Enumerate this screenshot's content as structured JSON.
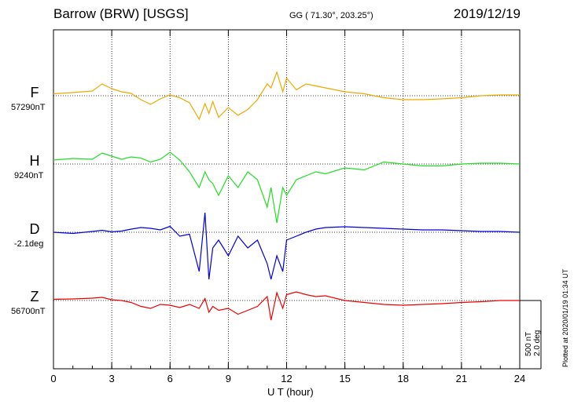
{
  "header": {
    "station": "Barrow (BRW)  [USGS]",
    "coords": "GG ( 71.30°, 203.25°)",
    "date": "2019/12/19"
  },
  "chart_data": {
    "type": "line",
    "xlabel": "U T (hour)",
    "xlim": [
      0,
      24
    ],
    "xticks": [
      "0",
      "3",
      "6",
      "9",
      "12",
      "15",
      "18",
      "21",
      "24"
    ],
    "grid": true,
    "scale_label_1": "500 nT",
    "scale_label_2": "2.0 deg",
    "plotted_note": "Plotted at 2020/01/19 01:34 UT",
    "series": [
      {
        "name": "F",
        "baseline_label": "57290nT",
        "color": "#f0a800",
        "x": [
          0,
          1,
          2,
          2.5,
          3,
          3.5,
          4,
          4.5,
          5,
          5.5,
          6,
          6.5,
          7,
          7.5,
          7.8,
          8,
          8.2,
          8.5,
          9,
          9.5,
          10,
          10.5,
          11,
          11.2,
          11.5,
          11.8,
          12,
          12.5,
          13,
          13.5,
          14,
          15,
          16,
          17,
          18,
          19,
          20,
          21,
          22,
          23,
          24
        ],
        "y": [
          5,
          8,
          12,
          30,
          18,
          10,
          6,
          -10,
          -22,
          -8,
          2,
          -5,
          -18,
          -60,
          -20,
          -45,
          -15,
          -55,
          -30,
          -50,
          -35,
          -10,
          30,
          20,
          60,
          10,
          45,
          15,
          30,
          25,
          20,
          10,
          5,
          -5,
          -10,
          -10,
          -8,
          -5,
          0,
          2,
          2
        ]
      },
      {
        "name": "H",
        "baseline_label": "9240nT",
        "color": "#22dd22",
        "x": [
          0,
          1,
          2,
          2.5,
          3,
          3.5,
          4,
          4.5,
          5,
          5.5,
          6,
          6.5,
          7,
          7.5,
          7.8,
          8,
          8.2,
          8.5,
          9,
          9.5,
          10,
          10.5,
          11,
          11.2,
          11.5,
          11.8,
          12,
          12.5,
          13,
          13.5,
          14,
          15,
          16,
          17,
          18,
          19,
          20,
          21,
          22,
          23,
          24
        ],
        "y": [
          10,
          14,
          12,
          28,
          20,
          12,
          18,
          15,
          5,
          12,
          30,
          10,
          -20,
          -60,
          -20,
          -40,
          -50,
          -80,
          -30,
          -60,
          -20,
          -40,
          -110,
          -60,
          -150,
          -60,
          -80,
          -40,
          -30,
          -20,
          -25,
          -10,
          -15,
          5,
          0,
          -5,
          -5,
          0,
          2,
          2,
          0
        ]
      },
      {
        "name": "D",
        "baseline_label": "-2.1deg",
        "color": "#0000dd",
        "x": [
          0,
          1,
          2,
          2.5,
          3,
          3.5,
          4,
          4.5,
          5,
          5.5,
          6,
          6.5,
          7,
          7.5,
          7.8,
          8,
          8.2,
          8.5,
          9,
          9.5,
          10,
          10.5,
          11,
          11.2,
          11.5,
          11.8,
          12,
          12.5,
          13,
          13.5,
          14,
          15,
          16,
          17,
          18,
          19,
          20,
          21,
          22,
          23,
          24
        ],
        "y": [
          0,
          -3,
          2,
          5,
          1,
          3,
          8,
          12,
          10,
          6,
          15,
          -10,
          -5,
          -100,
          50,
          -120,
          -40,
          -20,
          -60,
          -10,
          -40,
          -20,
          -80,
          -120,
          -60,
          -100,
          -20,
          -10,
          0,
          8,
          12,
          14,
          12,
          10,
          8,
          6,
          6,
          4,
          2,
          2,
          0
        ]
      },
      {
        "name": "Z",
        "baseline_label": "56700nT",
        "color": "#ee0000",
        "x": [
          0,
          1,
          2,
          2.5,
          3,
          3.5,
          4,
          4.5,
          5,
          5.5,
          6,
          6.5,
          7,
          7.5,
          7.8,
          8,
          8.2,
          8.5,
          9,
          9.5,
          10,
          10.5,
          11,
          11.2,
          11.5,
          11.8,
          12,
          12.5,
          13,
          13.5,
          14,
          15,
          16,
          17,
          18,
          19,
          20,
          21,
          22,
          23,
          24
        ],
        "y": [
          3,
          4,
          6,
          8,
          2,
          0,
          -5,
          -15,
          -20,
          -10,
          -12,
          -18,
          -10,
          -20,
          5,
          -30,
          -15,
          -25,
          -20,
          -35,
          -25,
          -15,
          10,
          -50,
          20,
          -20,
          15,
          22,
          15,
          10,
          12,
          0,
          -5,
          -10,
          -12,
          -10,
          -8,
          -5,
          -3,
          0,
          0
        ]
      }
    ]
  }
}
